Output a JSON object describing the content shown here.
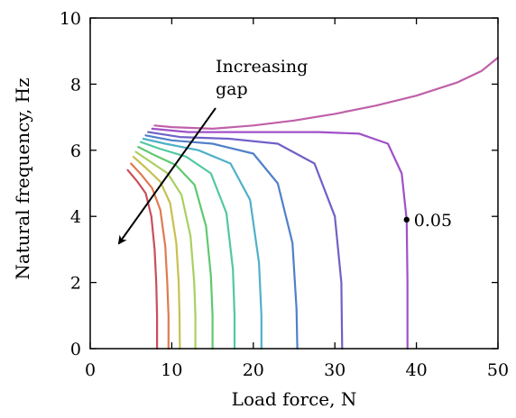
{
  "chart_data": {
    "type": "line",
    "xlabel": "Load force, N",
    "ylabel": "Natural frequency, Hz",
    "xlim": [
      0,
      50
    ],
    "ylim": [
      0,
      10
    ],
    "x_ticks": [
      0,
      10,
      20,
      30,
      40,
      50
    ],
    "y_ticks": [
      0,
      2,
      4,
      6,
      8,
      10
    ],
    "grid": false,
    "annotations": {
      "arrow_text_line1": "Increasing",
      "arrow_text_line2": "gap",
      "marker_label": "0.05",
      "marker_point": {
        "x": 38.8,
        "y": 3.9
      }
    },
    "series": [
      {
        "color": "#c8505a",
        "values": [
          [
            4.6,
            5.4
          ],
          [
            5.8,
            5.05
          ],
          [
            6.8,
            4.7
          ],
          [
            7.5,
            4.0
          ],
          [
            7.9,
            3.0
          ],
          [
            8.1,
            2.0
          ],
          [
            8.2,
            1.0
          ],
          [
            8.2,
            0
          ]
        ]
      },
      {
        "color": "#e07a50",
        "values": [
          [
            5.0,
            5.6
          ],
          [
            6.3,
            5.25
          ],
          [
            7.6,
            4.85
          ],
          [
            8.6,
            4.2
          ],
          [
            9.2,
            3.1
          ],
          [
            9.45,
            2.0
          ],
          [
            9.6,
            1.0
          ],
          [
            9.6,
            0
          ]
        ]
      },
      {
        "color": "#c8c050",
        "values": [
          [
            5.3,
            5.8
          ],
          [
            6.9,
            5.45
          ],
          [
            8.6,
            5.05
          ],
          [
            9.8,
            4.4
          ],
          [
            10.55,
            3.2
          ],
          [
            10.85,
            2.0
          ],
          [
            10.95,
            1.0
          ],
          [
            11.0,
            0
          ]
        ]
      },
      {
        "color": "#a8d060",
        "values": [
          [
            5.6,
            5.95
          ],
          [
            7.4,
            5.65
          ],
          [
            9.5,
            5.3
          ],
          [
            11.2,
            4.65
          ],
          [
            12.3,
            3.4
          ],
          [
            12.75,
            2.0
          ],
          [
            12.9,
            1.0
          ],
          [
            12.9,
            0
          ]
        ]
      },
      {
        "color": "#60c870",
        "values": [
          [
            5.9,
            6.1
          ],
          [
            7.9,
            5.85
          ],
          [
            10.5,
            5.55
          ],
          [
            12.8,
            4.95
          ],
          [
            14.2,
            3.7
          ],
          [
            14.8,
            2.2
          ],
          [
            15.0,
            1.0
          ],
          [
            15.0,
            0
          ]
        ]
      },
      {
        "color": "#50c8a0",
        "values": [
          [
            6.2,
            6.25
          ],
          [
            8.5,
            6.05
          ],
          [
            11.8,
            5.8
          ],
          [
            14.8,
            5.3
          ],
          [
            16.7,
            4.1
          ],
          [
            17.5,
            2.4
          ],
          [
            17.7,
            1.0
          ],
          [
            17.7,
            0
          ]
        ]
      },
      {
        "color": "#50b0c8",
        "values": [
          [
            6.5,
            6.35
          ],
          [
            9.2,
            6.2
          ],
          [
            13.3,
            6.0
          ],
          [
            17.2,
            5.6
          ],
          [
            19.6,
            4.5
          ],
          [
            20.7,
            2.6
          ],
          [
            21.0,
            1.0
          ],
          [
            21.0,
            0
          ]
        ]
      },
      {
        "color": "#5080c8",
        "values": [
          [
            6.8,
            6.45
          ],
          [
            10.0,
            6.3
          ],
          [
            15.0,
            6.2
          ],
          [
            20.0,
            5.9
          ],
          [
            23.0,
            5.0
          ],
          [
            24.8,
            3.2
          ],
          [
            25.3,
            1.2
          ],
          [
            25.4,
            0
          ]
        ]
      },
      {
        "color": "#7060c8",
        "values": [
          [
            7.1,
            6.55
          ],
          [
            11.0,
            6.4
          ],
          [
            17.0,
            6.35
          ],
          [
            23.0,
            6.2
          ],
          [
            27.5,
            5.6
          ],
          [
            30.0,
            4.0
          ],
          [
            30.8,
            2.0
          ],
          [
            30.9,
            0
          ]
        ]
      },
      {
        "color": "#a050c8",
        "values": [
          [
            7.6,
            6.65
          ],
          [
            12.0,
            6.55
          ],
          [
            20.0,
            6.55
          ],
          [
            28.0,
            6.55
          ],
          [
            33.0,
            6.5
          ],
          [
            36.5,
            6.2
          ],
          [
            38.2,
            5.3
          ],
          [
            38.8,
            3.9
          ],
          [
            38.9,
            2.0
          ],
          [
            38.9,
            0
          ]
        ]
      },
      {
        "color": "#c060a8",
        "values": [
          [
            7.9,
            6.75
          ],
          [
            10.0,
            6.7
          ],
          [
            15.0,
            6.65
          ],
          [
            20.0,
            6.75
          ],
          [
            25.0,
            6.9
          ],
          [
            30.0,
            7.1
          ],
          [
            35.0,
            7.35
          ],
          [
            40.0,
            7.65
          ],
          [
            45.0,
            8.05
          ],
          [
            48.0,
            8.4
          ],
          [
            50.0,
            8.8
          ]
        ]
      }
    ]
  }
}
